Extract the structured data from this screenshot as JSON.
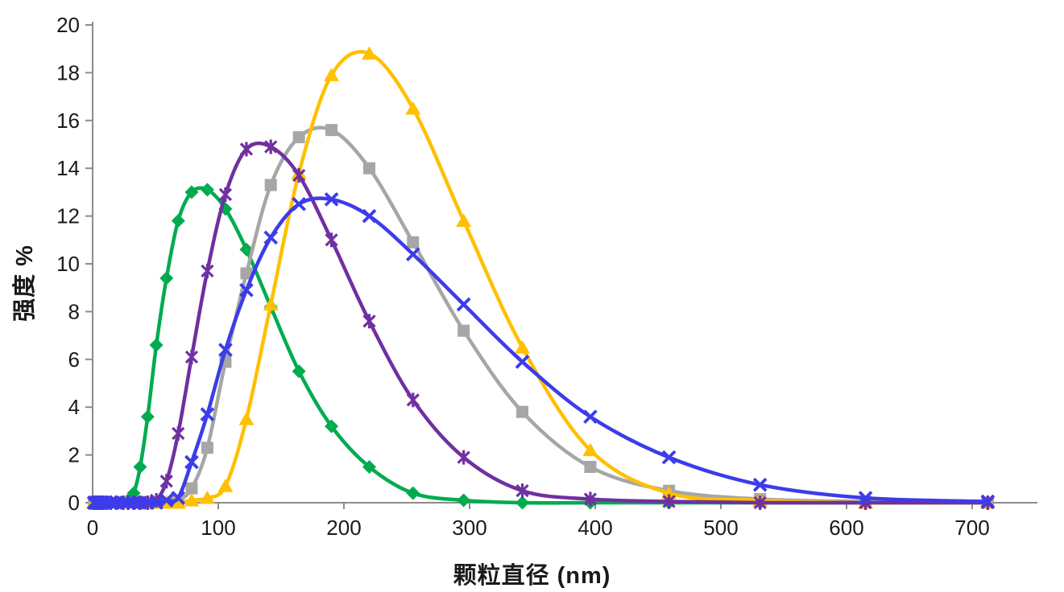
{
  "chart_data": {
    "type": "line",
    "title": "",
    "xlabel": "颗粒直径 (nm)",
    "ylabel": "强度 %",
    "xlim": [
      0,
      750
    ],
    "ylim": [
      0,
      20
    ],
    "x_ticks": [
      0,
      100,
      200,
      300,
      400,
      500,
      600,
      700
    ],
    "y_ticks": [
      0,
      2,
      4,
      6,
      8,
      10,
      12,
      14,
      16,
      18,
      20
    ],
    "grid": false,
    "legend_position": "none",
    "x_nm": [
      1.0,
      1.3,
      1.7,
      2.2,
      2.9,
      3.8,
      5.0,
      6.5,
      8.5,
      11.0,
      14.3,
      18.7,
      24.4,
      28.2,
      32.7,
      37.8,
      43.8,
      50.7,
      58.8,
      68.1,
      78.8,
      91.3,
      105.7,
      122.4,
      141.8,
      164.2,
      190.1,
      220.2,
      255.0,
      295.3,
      342.0,
      396.1,
      458.7,
      531.2,
      615.1,
      712.4
    ],
    "series": [
      {
        "name": "green-diamond-series",
        "marker": "diamond",
        "color": "#00AB50",
        "peak_nm": 91.3,
        "peak_value": 13.1,
        "values": [
          0,
          0,
          0,
          0,
          0,
          0,
          0,
          0,
          0,
          0,
          0,
          0,
          0,
          0.1,
          0.4,
          1.5,
          3.6,
          6.6,
          9.4,
          11.8,
          13.0,
          13.1,
          12.3,
          10.6,
          8.2,
          5.5,
          3.2,
          1.5,
          0.4,
          0.1,
          0,
          0,
          0,
          0,
          0,
          0
        ]
      },
      {
        "name": "gray-square-series",
        "marker": "square",
        "color": "#A6A6A6",
        "peak_nm": 190.1,
        "peak_value": 15.6,
        "values": [
          0,
          0,
          0,
          0,
          0,
          0,
          0,
          0,
          0,
          0,
          0,
          0,
          0,
          0,
          0,
          0,
          0,
          0,
          0,
          0.1,
          0.6,
          2.3,
          5.9,
          9.6,
          13.3,
          15.3,
          15.6,
          14.0,
          10.9,
          7.2,
          3.8,
          1.5,
          0.5,
          0.15,
          0.05,
          0
        ]
      },
      {
        "name": "gold-triangle-series",
        "marker": "triangle",
        "color": "#FFC000",
        "peak_nm": 220.2,
        "peak_value": 18.8,
        "values": [
          0,
          0,
          0,
          0,
          0,
          0,
          0,
          0,
          0,
          0,
          0,
          0,
          0,
          0,
          0,
          0,
          0,
          0,
          0,
          0,
          0.1,
          0.2,
          0.7,
          3.5,
          8.3,
          13.8,
          17.9,
          18.8,
          16.5,
          11.8,
          6.5,
          2.2,
          0.4,
          0.1,
          0,
          0
        ]
      },
      {
        "name": "purple-asterisk-series",
        "marker": "asterisk",
        "color": "#7030A0",
        "peak_nm": 141.8,
        "peak_value": 14.9,
        "values": [
          0,
          0,
          0,
          0,
          0,
          0,
          0,
          0,
          0,
          0,
          0,
          0,
          0,
          0,
          0,
          0,
          0,
          0.1,
          0.9,
          2.9,
          6.1,
          9.7,
          12.9,
          14.8,
          14.9,
          13.7,
          11.0,
          7.6,
          4.3,
          1.9,
          0.5,
          0.15,
          0.05,
          0,
          0,
          0
        ]
      },
      {
        "name": "blue-x-series",
        "marker": "x",
        "color": "#3C3CEB",
        "peak_nm": 190.1,
        "peak_value": 12.7,
        "values": [
          0,
          0,
          0,
          0,
          0,
          0,
          0,
          0,
          0,
          0,
          0,
          0,
          0,
          0,
          0,
          0,
          0,
          0,
          0.1,
          0.2,
          1.7,
          3.7,
          6.4,
          8.9,
          11.1,
          12.5,
          12.7,
          12.0,
          10.4,
          8.3,
          5.9,
          3.6,
          1.9,
          0.75,
          0.2,
          0.05
        ]
      }
    ]
  },
  "colors": {
    "axis": "#8C8C8C",
    "tick_text": "#1A1A1A",
    "background": "#FFFFFF"
  }
}
